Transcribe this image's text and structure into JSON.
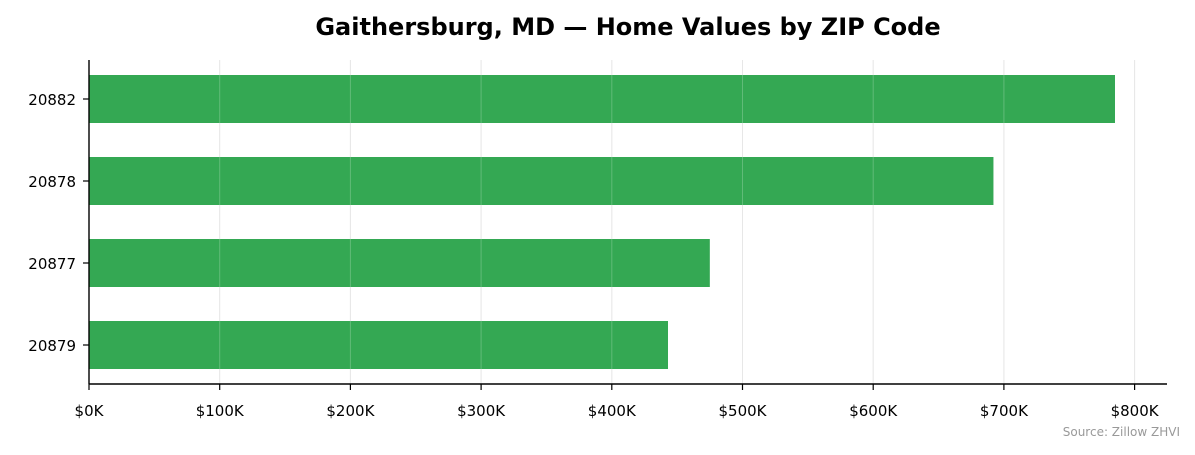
{
  "chart_data": {
    "type": "bar",
    "orientation": "horizontal",
    "title": "Gaithersburg, MD — Home Values by ZIP Code",
    "xlabel": "",
    "ylabel": "",
    "categories": [
      "20882",
      "20878",
      "20877",
      "20879"
    ],
    "values": [
      785000,
      692000,
      475000,
      443000
    ],
    "xlim": [
      0,
      825000
    ],
    "xticks": [
      0,
      100000,
      200000,
      300000,
      400000,
      500000,
      600000,
      700000,
      800000
    ],
    "xtick_labels": [
      "$0K",
      "$100K",
      "$200K",
      "$300K",
      "$400K",
      "$500K",
      "$600K",
      "$700K",
      "$800K"
    ],
    "grid": "vertical",
    "legend": "none",
    "bar_color": "#34a853",
    "grid_color": "#e0e0e0",
    "source": "Source: Zillow ZHVI"
  }
}
